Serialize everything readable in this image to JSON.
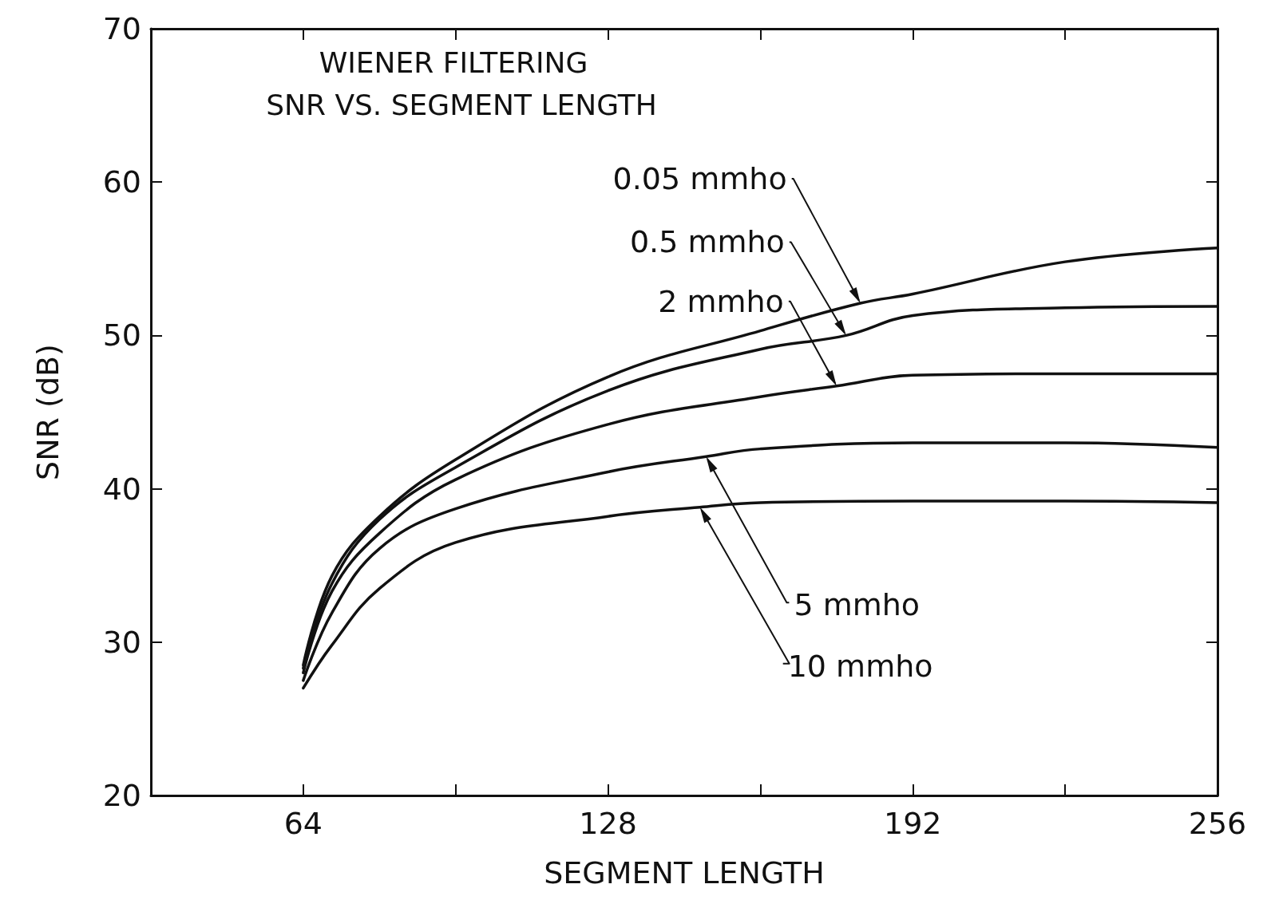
{
  "chart_data": {
    "type": "line",
    "title": "WIENER FILTERING",
    "subtitle": "SNR VS. SEGMENT LENGTH",
    "xlabel": "SEGMENT LENGTH",
    "ylabel": "SNR (dB)",
    "xlim": [
      32,
      256
    ],
    "xticks": [
      64,
      {
        "value": 96,
        "label": null
      },
      128,
      {
        "value": 160,
        "label": null
      },
      192,
      {
        "value": 224,
        "label": null
      },
      256
    ],
    "ylim": [
      20,
      70
    ],
    "yticks": [
      20,
      30,
      40,
      50,
      60,
      70
    ],
    "grid": false,
    "marker": "none",
    "line_style": "solid",
    "series": [
      {
        "color": "#111111",
        "x": [
          64,
          70,
          80,
          96,
          128,
          160,
          181,
          192,
          224,
          256
        ],
        "values": [
          28.5,
          34.3,
          38.2,
          41.9,
          47.3,
          50.3,
          52.1,
          52.7,
          54.8,
          55.7
        ]
      },
      {
        "color": "#111111",
        "x": [
          64,
          70,
          80,
          96,
          128,
          160,
          178,
          192,
          224,
          256
        ],
        "values": [
          28.3,
          33.8,
          38.0,
          41.4,
          46.4,
          49.1,
          50.0,
          51.3,
          51.8,
          51.9
        ]
      },
      {
        "color": "#111111",
        "x": [
          64,
          70,
          80,
          96,
          128,
          160,
          176,
          192,
          224,
          256
        ],
        "values": [
          28.0,
          33.3,
          37.1,
          40.6,
          44.2,
          46.0,
          46.7,
          47.4,
          47.5,
          47.5
        ]
      },
      {
        "color": "#111111",
        "x": [
          64,
          70,
          80,
          96,
          128,
          148.6,
          160,
          192,
          224,
          256
        ],
        "values": [
          27.5,
          31.9,
          36.1,
          38.7,
          41.1,
          42.1,
          42.6,
          43.0,
          43.0,
          42.7
        ]
      },
      {
        "color": "#111111",
        "x": [
          64,
          70,
          80,
          96,
          128,
          147.3,
          160,
          192,
          224,
          256
        ],
        "values": [
          27.0,
          29.8,
          33.5,
          36.5,
          38.2,
          38.8,
          39.1,
          39.2,
          39.2,
          39.1
        ]
      }
    ],
    "annotations": [
      {
        "text": "0.05 mmho",
        "x": 181,
        "y": 52.1
      },
      {
        "text": "0.5 mmho",
        "x": 178,
        "y": 50.0
      },
      {
        "text": "2 mmho",
        "x": 176,
        "y": 46.7
      },
      {
        "text": "5 mmho",
        "x": 148.6,
        "y": 42.1
      },
      {
        "text": "10 mmho",
        "x": 147.3,
        "y": 38.8
      }
    ]
  }
}
